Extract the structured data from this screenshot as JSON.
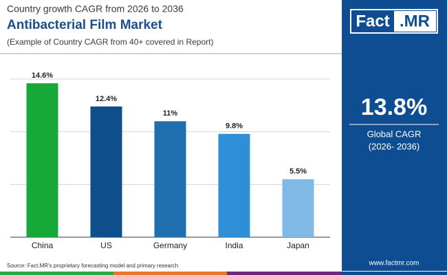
{
  "chart_data": {
    "type": "bar",
    "title": "Country growth CAGR from 2026 to 2036",
    "subtitle": "Antibacterial Film Market",
    "note": "(Example of Country CAGR from 40+ covered in Report)",
    "categories": [
      "China",
      "US",
      "Germany",
      "India",
      "Japan"
    ],
    "values": [
      14.6,
      12.4,
      11,
      9.8,
      5.5
    ],
    "value_labels": [
      "14.6%",
      "12.4%",
      "11%",
      "9.8%",
      "5.5%"
    ],
    "colors": [
      "#17a83a",
      "#0d4e8b",
      "#1f6fae",
      "#2f8fd6",
      "#80b9e6"
    ],
    "ylim": [
      0,
      15
    ],
    "yticks": [
      0,
      5,
      10,
      15
    ],
    "grid": true
  },
  "logo": {
    "left": "Fact",
    "right": ".MR"
  },
  "side_panel": {
    "value": "13.8%",
    "label": "Global CAGR",
    "period": "(2026- 2036)"
  },
  "footer": {
    "source": "Source: Fact.MR's proprietary forecasting model and primary research",
    "website": "www.factmr.com"
  }
}
